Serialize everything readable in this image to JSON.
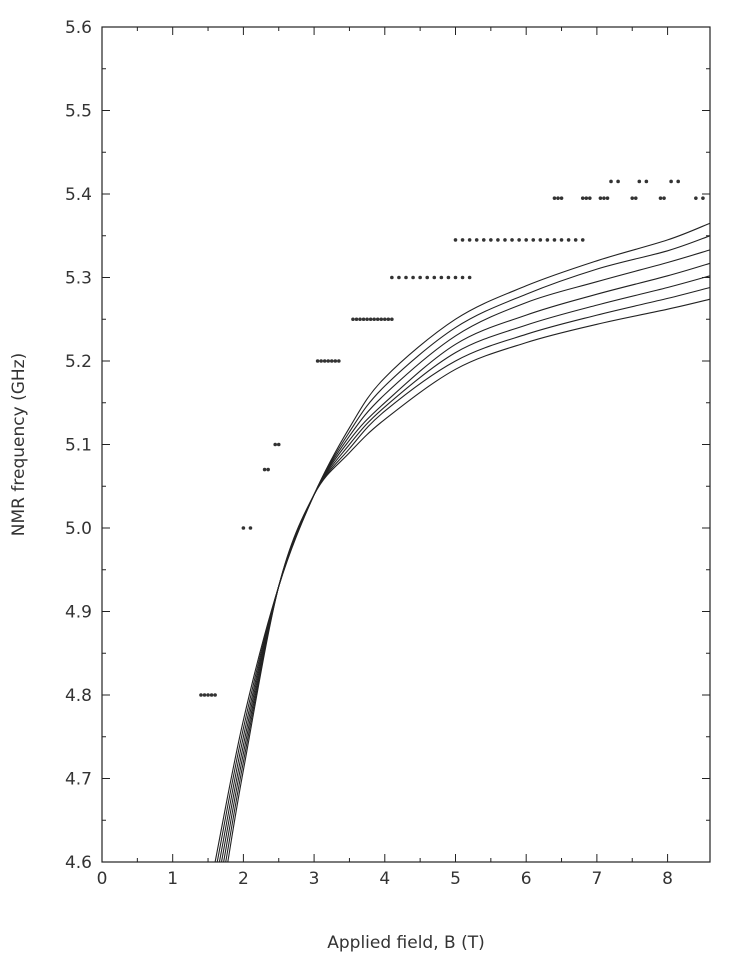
{
  "chart_data": {
    "type": "line",
    "xlabel": "Applied field, B (T)",
    "ylabel": "NMR frequency (GHz)",
    "xlim": [
      0,
      8.6
    ],
    "ylim": [
      4.6,
      5.6
    ],
    "x_ticks": [
      0,
      1,
      2,
      3,
      4,
      5,
      6,
      7,
      8
    ],
    "x_tick_labels": [
      "0",
      "1",
      "2",
      "3",
      "4",
      "5",
      "6",
      "7",
      "8"
    ],
    "y_ticks": [
      4.6,
      4.7,
      4.8,
      4.9,
      5.0,
      5.1,
      5.2,
      5.3,
      5.4,
      5.5,
      5.6
    ],
    "y_tick_labels": [
      "4.6",
      "4.7",
      "4.8",
      "4.9",
      "5.0",
      "5.1",
      "5.2",
      "5.3",
      "5.4",
      "5.5",
      "5.6"
    ],
    "grid": false,
    "legend": "none",
    "line_color": "#222222",
    "marker_color": "#333333",
    "series": [
      {
        "x": [
          1.6,
          2.0,
          2.5,
          3.0,
          3.5,
          4.0,
          5.0,
          6.0,
          7.0,
          8.0,
          8.6
        ],
        "y": [
          4.6,
          4.77,
          4.93,
          5.04,
          5.12,
          5.18,
          5.25,
          5.29,
          5.32,
          5.345,
          5.365
        ]
      },
      {
        "x": [
          1.63,
          2.0,
          2.5,
          3.0,
          3.5,
          4.0,
          5.0,
          6.0,
          7.0,
          8.0,
          8.6
        ],
        "y": [
          4.6,
          4.76,
          4.93,
          5.04,
          5.115,
          5.17,
          5.24,
          5.28,
          5.31,
          5.332,
          5.35
        ]
      },
      {
        "x": [
          1.66,
          2.0,
          2.5,
          3.0,
          3.5,
          4.0,
          5.0,
          6.0,
          7.0,
          8.0,
          8.6
        ],
        "y": [
          4.6,
          4.75,
          4.93,
          5.04,
          5.11,
          5.16,
          5.23,
          5.27,
          5.295,
          5.318,
          5.333
        ]
      },
      {
        "x": [
          1.69,
          2.0,
          2.5,
          3.0,
          3.5,
          4.0,
          5.0,
          6.0,
          7.0,
          8.0,
          8.6
        ],
        "y": [
          4.6,
          4.74,
          4.93,
          5.04,
          5.105,
          5.15,
          5.22,
          5.255,
          5.28,
          5.302,
          5.317
        ]
      },
      {
        "x": [
          1.72,
          2.0,
          2.5,
          3.0,
          3.5,
          4.0,
          5.0,
          6.0,
          7.0,
          8.0,
          8.6
        ],
        "y": [
          4.6,
          4.73,
          4.93,
          5.04,
          5.1,
          5.145,
          5.21,
          5.243,
          5.267,
          5.288,
          5.302
        ]
      },
      {
        "x": [
          1.75,
          2.0,
          2.5,
          3.0,
          3.5,
          4.0,
          5.0,
          6.0,
          7.0,
          8.0,
          8.6
        ],
        "y": [
          4.6,
          4.72,
          4.93,
          5.04,
          5.095,
          5.14,
          5.2,
          5.232,
          5.255,
          5.275,
          5.288
        ]
      },
      {
        "x": [
          1.78,
          2.0,
          2.5,
          3.0,
          3.5,
          4.0,
          5.0,
          6.0,
          7.0,
          8.0,
          8.6
        ],
        "y": [
          4.6,
          4.71,
          4.93,
          5.04,
          5.09,
          5.13,
          5.19,
          5.222,
          5.244,
          5.262,
          5.274
        ]
      }
    ],
    "points": [
      {
        "x": [
          1.4,
          1.45,
          1.5,
          1.55,
          1.6
        ],
        "y": 4.8
      },
      {
        "x": [
          2.0,
          2.1
        ],
        "y": 5.0
      },
      {
        "x": [
          2.3,
          2.35
        ],
        "y": 5.07
      },
      {
        "x": [
          2.45,
          2.5
        ],
        "y": 5.1
      },
      {
        "x": [
          3.05,
          3.1,
          3.15,
          3.2,
          3.25,
          3.3,
          3.35
        ],
        "y": 5.2
      },
      {
        "x": [
          3.55,
          3.6,
          3.65,
          3.7,
          3.75,
          3.8,
          3.85,
          3.9,
          3.95,
          4.0,
          4.05,
          4.1
        ],
        "y": 5.25
      },
      {
        "x": [
          4.1,
          4.2,
          4.3,
          4.4,
          4.5,
          4.6,
          4.7,
          4.8,
          4.9,
          5.0,
          5.1,
          5.2
        ],
        "y": 5.3
      },
      {
        "x": [
          5.0,
          5.1,
          5.2,
          5.3,
          5.4,
          5.5,
          5.6,
          5.7,
          5.8,
          5.9,
          6.0,
          6.1,
          6.2,
          6.3,
          6.4,
          6.5,
          6.6,
          6.7,
          6.8
        ],
        "y": 5.345
      },
      {
        "x": [
          6.4,
          6.45,
          6.5,
          6.8,
          6.85,
          6.9,
          7.05,
          7.1,
          7.15,
          7.5,
          7.55,
          7.9,
          7.95,
          8.4,
          8.5
        ],
        "y": 5.395
      },
      {
        "x": [
          7.2,
          7.3,
          7.6,
          7.7,
          8.05,
          8.15
        ],
        "y": 5.415
      }
    ]
  }
}
